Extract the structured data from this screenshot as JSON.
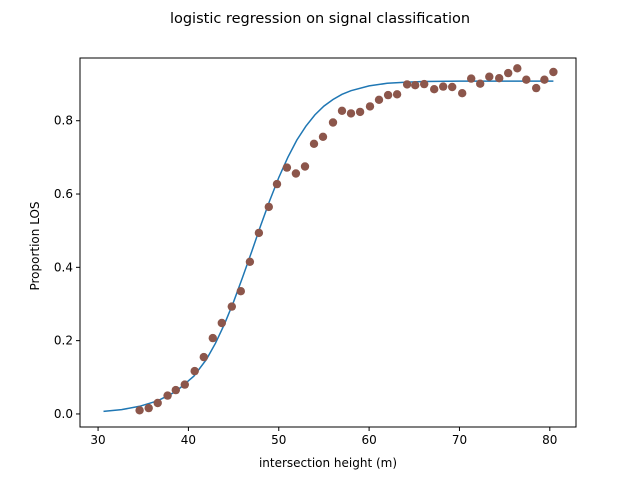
{
  "chart_data": {
    "type": "scatter",
    "title": "logistic regression on signal classification",
    "xlabel": "intersection height (m)",
    "ylabel": "Proportion LOS",
    "xlim": [
      28.0,
      82.9
    ],
    "ylim": [
      -0.0356,
      0.9711
    ],
    "xticks": [
      30,
      40,
      50,
      60,
      70,
      80
    ],
    "xtick_labels": [
      "30",
      "40",
      "50",
      "60",
      "70",
      "80"
    ],
    "yticks": [
      0.0,
      0.2,
      0.4,
      0.6,
      0.8
    ],
    "ytick_labels": [
      "0.0",
      "0.2",
      "0.4",
      "0.6",
      "0.8"
    ],
    "grid": false,
    "legend": "none",
    "colors": {
      "points": "#8c564b",
      "fit": "#1f77b4"
    },
    "series": [
      {
        "type": "scatter",
        "x": [
          34.6,
          35.6,
          36.6,
          37.7,
          38.6,
          39.6,
          40.7,
          41.7,
          42.7,
          43.7,
          44.8,
          45.8,
          46.8,
          47.8,
          48.9,
          49.8,
          50.9,
          51.9,
          52.9,
          53.9,
          54.9,
          56.0,
          57.0,
          58.0,
          59.0,
          60.1,
          61.1,
          62.1,
          63.1,
          64.2,
          65.1,
          66.1,
          67.2,
          68.2,
          69.2,
          70.3,
          71.3,
          72.3,
          73.3,
          74.4,
          75.4,
          76.4,
          77.4,
          78.5,
          79.4,
          80.4
        ],
        "y": [
          0.01,
          0.016,
          0.03,
          0.05,
          0.065,
          0.08,
          0.117,
          0.155,
          0.207,
          0.248,
          0.293,
          0.335,
          0.415,
          0.494,
          0.565,
          0.627,
          0.672,
          0.656,
          0.675,
          0.737,
          0.756,
          0.795,
          0.827,
          0.82,
          0.824,
          0.839,
          0.857,
          0.87,
          0.872,
          0.899,
          0.897,
          0.9,
          0.886,
          0.893,
          0.892,
          0.875,
          0.915,
          0.901,
          0.92,
          0.916,
          0.93,
          0.943,
          0.912,
          0.889,
          0.912,
          0.933
        ]
      },
      {
        "type": "line",
        "x": [
          30.6,
          32.6,
          34.6,
          36.6,
          38.6,
          40.6,
          42.0,
          43.0,
          44.0,
          45.0,
          46.0,
          47.0,
          48.0,
          49.0,
          50.0,
          51.0,
          52.0,
          53.0,
          54.0,
          55.0,
          56.0,
          57.0,
          58.0,
          60.0,
          62.0,
          64.0,
          66.0,
          70.0,
          75.0,
          80.4
        ],
        "y": [
          0.007,
          0.012,
          0.021,
          0.036,
          0.061,
          0.103,
          0.149,
          0.193,
          0.246,
          0.306,
          0.373,
          0.443,
          0.514,
          0.582,
          0.645,
          0.7,
          0.747,
          0.785,
          0.816,
          0.84,
          0.858,
          0.872,
          0.882,
          0.895,
          0.902,
          0.905,
          0.907,
          0.908,
          0.908,
          0.908
        ]
      }
    ]
  }
}
